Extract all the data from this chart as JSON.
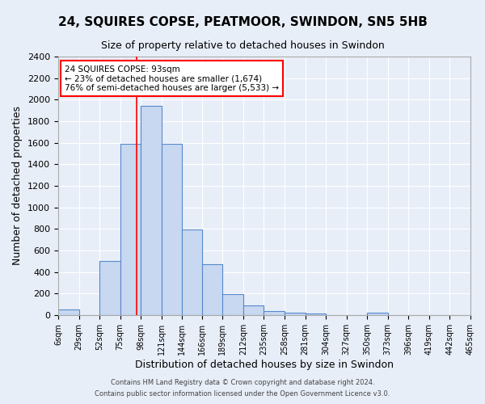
{
  "title_line1": "24, SQUIRES COPSE, PEATMOOR, SWINDON, SN5 5HB",
  "title_line2": "Size of property relative to detached houses in Swindon",
  "xlabel": "Distribution of detached houses by size in Swindon",
  "ylabel": "Number of detached properties",
  "bin_labels": [
    "6sqm",
    "29sqm",
    "52sqm",
    "75sqm",
    "98sqm",
    "121sqm",
    "144sqm",
    "166sqm",
    "189sqm",
    "212sqm",
    "235sqm",
    "258sqm",
    "281sqm",
    "304sqm",
    "327sqm",
    "350sqm",
    "373sqm",
    "396sqm",
    "419sqm",
    "442sqm",
    "465sqm"
  ],
  "bar_heights": [
    55,
    0,
    500,
    1590,
    1940,
    1590,
    795,
    475,
    195,
    88,
    35,
    25,
    18,
    0,
    0,
    20,
    0,
    0,
    0,
    0
  ],
  "bar_color_fill": "#c8d8f0",
  "bar_color_edge": "#5588cc",
  "red_line_x": 93,
  "bin_edges_sqm": [
    6,
    29,
    52,
    75,
    98,
    121,
    144,
    166,
    189,
    212,
    235,
    258,
    281,
    304,
    327,
    350,
    373,
    396,
    419,
    442,
    465
  ],
  "annotation_text": "24 SQUIRES COPSE: 93sqm\n← 23% of detached houses are smaller (1,674)\n76% of semi-detached houses are larger (5,533) →",
  "annotation_box_color": "white",
  "annotation_box_edge": "red",
  "ylim": [
    0,
    2400
  ],
  "yticks": [
    0,
    200,
    400,
    600,
    800,
    1000,
    1200,
    1400,
    1600,
    1800,
    2000,
    2200,
    2400
  ],
  "footnote1": "Contains HM Land Registry data © Crown copyright and database right 2024.",
  "footnote2": "Contains public sector information licensed under the Open Government Licence v3.0.",
  "bg_color": "#e8eef8",
  "plot_bg_color": "#e8eef8",
  "grid_color": "white",
  "title_fontsize": 11,
  "subtitle_fontsize": 9
}
